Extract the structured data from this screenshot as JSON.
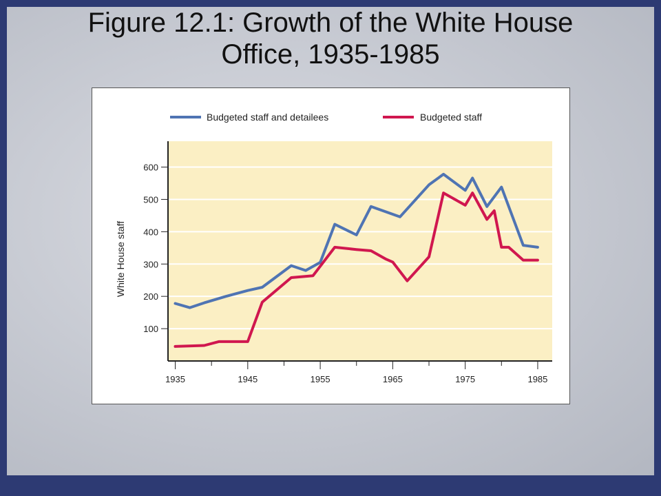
{
  "slide": {
    "title_line1": "Figure 12.1: Growth of the White House",
    "title_line2": "Office, 1935-1985"
  },
  "colors": {
    "plot_background": "#fbefc4",
    "series_1": "#4f74b3",
    "series_2": "#d0174f",
    "slide_border": "#2d3a73"
  },
  "chart_data": {
    "type": "line",
    "title": "",
    "xlabel": "",
    "ylabel": "White House staff",
    "xlim": [
      1934,
      1987
    ],
    "ylim": [
      0,
      680
    ],
    "x_ticks": [
      1935,
      1945,
      1955,
      1965,
      1975,
      1985
    ],
    "y_ticks": [
      100,
      200,
      300,
      400,
      500,
      600
    ],
    "grid": "horizontal",
    "legend_position": "top",
    "series": [
      {
        "name": "Budgeted staff and detailees",
        "color": "#4f74b3",
        "points": [
          [
            1935,
            178
          ],
          [
            1937,
            165
          ],
          [
            1939,
            180
          ],
          [
            1942,
            200
          ],
          [
            1945,
            218
          ],
          [
            1947,
            228
          ],
          [
            1951,
            295
          ],
          [
            1953,
            280
          ],
          [
            1955,
            305
          ],
          [
            1957,
            423
          ],
          [
            1960,
            390
          ],
          [
            1962,
            478
          ],
          [
            1966,
            446
          ],
          [
            1970,
            545
          ],
          [
            1972,
            578
          ],
          [
            1975,
            528
          ],
          [
            1976,
            566
          ],
          [
            1978,
            478
          ],
          [
            1980,
            538
          ],
          [
            1983,
            358
          ],
          [
            1985,
            352
          ]
        ]
      },
      {
        "name": "Budgeted staff",
        "color": "#d0174f",
        "points": [
          [
            1935,
            45
          ],
          [
            1939,
            48
          ],
          [
            1941,
            60
          ],
          [
            1945,
            60
          ],
          [
            1947,
            182
          ],
          [
            1951,
            258
          ],
          [
            1954,
            264
          ],
          [
            1957,
            352
          ],
          [
            1960,
            345
          ],
          [
            1962,
            341
          ],
          [
            1964,
            316
          ],
          [
            1965,
            306
          ],
          [
            1967,
            248
          ],
          [
            1970,
            322
          ],
          [
            1972,
            520
          ],
          [
            1975,
            482
          ],
          [
            1976,
            520
          ],
          [
            1978,
            438
          ],
          [
            1979,
            465
          ],
          [
            1980,
            352
          ],
          [
            1981,
            352
          ],
          [
            1983,
            312
          ],
          [
            1985,
            312
          ]
        ]
      }
    ]
  }
}
